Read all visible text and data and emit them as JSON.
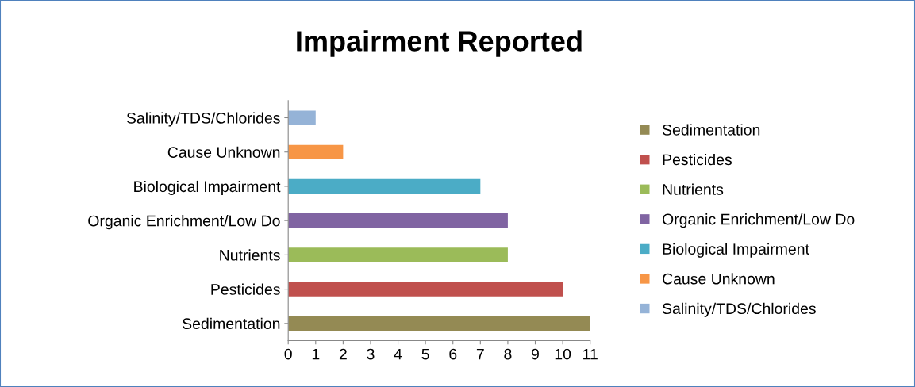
{
  "chart_data": {
    "type": "bar",
    "orientation": "horizontal",
    "title": "Impairment Reported",
    "categories": [
      "Salinity/TDS/Chlorides",
      "Cause Unknown",
      "Biological Impairment",
      "Organic Enrichment/Low Do",
      "Nutrients",
      "Pesticides",
      "Sedimentation"
    ],
    "series": [
      {
        "name": "Sedimentation",
        "color": "#948a54",
        "values": [
          null,
          null,
          null,
          null,
          null,
          null,
          11
        ]
      },
      {
        "name": "Pesticides",
        "color": "#c0504d",
        "values": [
          null,
          null,
          null,
          null,
          null,
          10,
          null
        ]
      },
      {
        "name": "Nutrients",
        "color": "#9bbb59",
        "values": [
          null,
          null,
          null,
          null,
          8,
          null,
          null
        ]
      },
      {
        "name": "Organic Enrichment/Low Do",
        "color": "#8064a2",
        "values": [
          null,
          null,
          null,
          8,
          null,
          null,
          null
        ]
      },
      {
        "name": "Biological Impairment",
        "color": "#4bacc6",
        "values": [
          null,
          null,
          7,
          null,
          null,
          null,
          null
        ]
      },
      {
        "name": "Cause Unknown",
        "color": "#f79646",
        "values": [
          null,
          2,
          null,
          null,
          null,
          null,
          null
        ]
      },
      {
        "name": "Salinity/TDS/Chlorides",
        "color": "#95b3d7",
        "values": [
          1,
          null,
          null,
          null,
          null,
          null,
          null
        ]
      }
    ],
    "xlim": [
      0,
      11
    ],
    "xticks": [
      0,
      1,
      2,
      3,
      4,
      5,
      6,
      7,
      8,
      9,
      10,
      11
    ],
    "grid": false,
    "legend": "right"
  }
}
